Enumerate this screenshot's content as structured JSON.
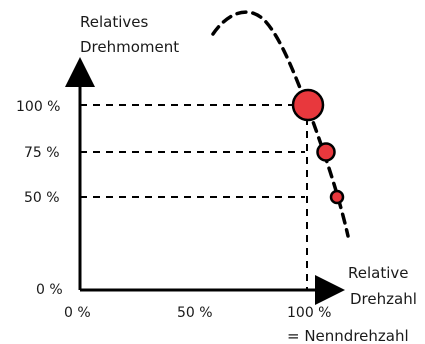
{
  "y_axis_label_line1": "Relatives",
  "y_axis_label_line2": "Drehmoment",
  "x_axis_label_line1": "Relative",
  "x_axis_label_line2": "Drehzahl",
  "x_axis_note": "= Nenndrehzahl",
  "y_ticks": [
    "100 %",
    "75 %",
    "50 %",
    "0 %"
  ],
  "x_ticks": [
    "0 %",
    "50 %",
    "100 %"
  ],
  "colors": {
    "point_fill": "#e8383d",
    "axis": "#000000"
  },
  "points": [
    {
      "torque_pct": 100,
      "size": "large"
    },
    {
      "torque_pct": 75,
      "size": "medium"
    },
    {
      "torque_pct": 50,
      "size": "small"
    }
  ]
}
